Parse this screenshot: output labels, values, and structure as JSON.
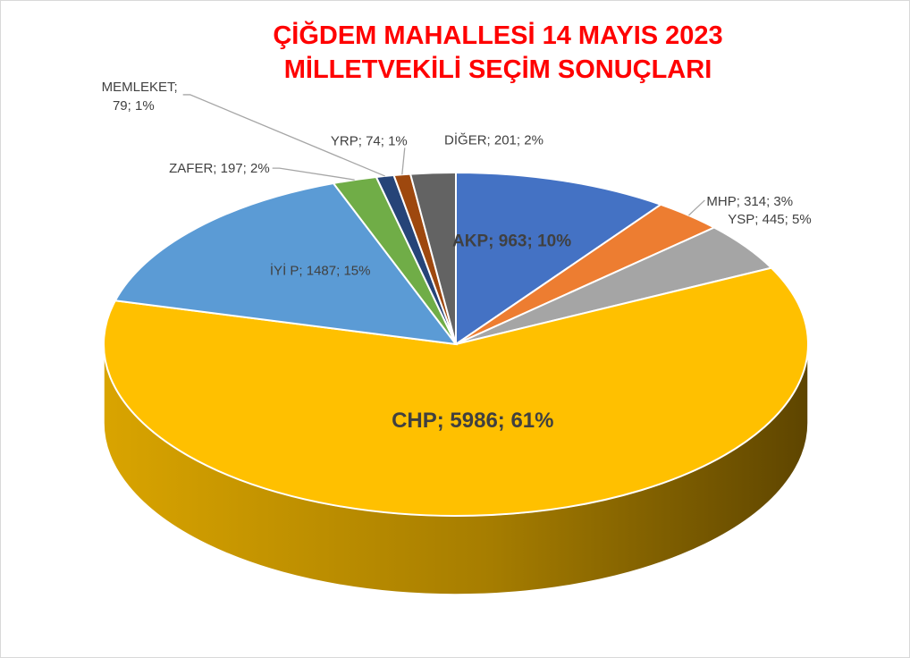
{
  "chart_data": {
    "type": "pie",
    "title_line1": "ÇİĞDEM MAHALLESİ 14 MAYIS 2023",
    "title_line2": "MİLLETVEKİLİ SEÇİM SONUÇLARI",
    "label_format": "{name}; {value}; {pct}",
    "slices": [
      {
        "name": "AKP",
        "value": 963,
        "pct": "10%",
        "label": "AKP; 963; 10%",
        "color": "#4472c4",
        "dark": "#2f5597"
      },
      {
        "name": "MHP",
        "value": 314,
        "pct": "3%",
        "label": "MHP; 314; 3%",
        "color": "#ed7d31",
        "dark": "#a8531c"
      },
      {
        "name": "YSP",
        "value": 445,
        "pct": "5%",
        "label": "YSP; 445; 5%",
        "color": "#a5a5a5",
        "dark": "#6e6e6e"
      },
      {
        "name": "CHP",
        "value": 5986,
        "pct": "61%",
        "label": "CHP; 5986; 61%",
        "color": "#ffc000",
        "dark": "#6b4f00"
      },
      {
        "name": "İYİ P",
        "value": 1487,
        "pct": "15%",
        "label": "İYİ P; 1487; 15%",
        "color": "#5b9bd5",
        "dark": "#2e6ba3"
      },
      {
        "name": "ZAFER",
        "value": 197,
        "pct": "2%",
        "label": "ZAFER; 197; 2%",
        "color": "#70ad47",
        "dark": "#4a7a2c"
      },
      {
        "name": "MEMLEKET",
        "value": 79,
        "pct": "1%",
        "label_line1": "MEMLEKET;",
        "label_line2": "79; 1%",
        "color": "#264478",
        "dark": "#16294a"
      },
      {
        "name": "YRP",
        "value": 74,
        "pct": "1%",
        "label": "YRP; 74; 1%",
        "color": "#9e480e",
        "dark": "#602b08"
      },
      {
        "name": "DİĞER",
        "value": 201,
        "pct": "2%",
        "label": "DİĞER; 201; 2%",
        "color": "#636363",
        "dark": "#3a3a3a"
      }
    ],
    "legend": "none"
  }
}
